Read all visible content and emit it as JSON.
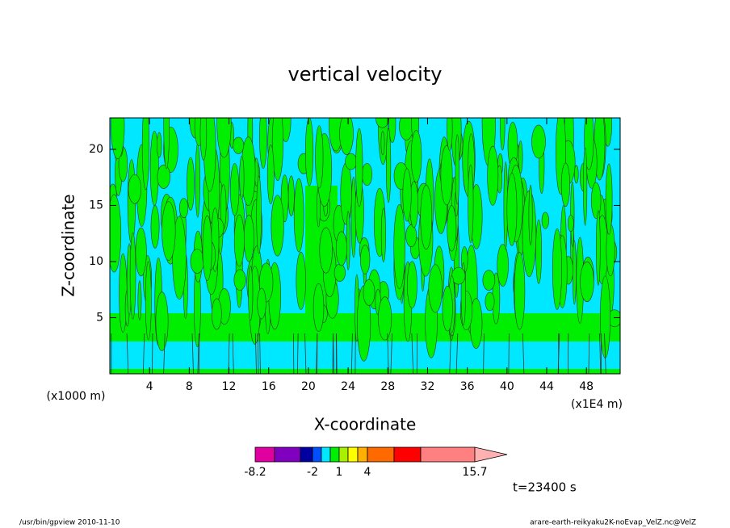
{
  "chart_data": {
    "type": "contour",
    "title": "vertical velocity",
    "x_label": "X-coordinate",
    "y_label": "Z-coordinate",
    "x_unit": "(x1000 m)",
    "x_scale_note": "(x1E4 m)",
    "xlim": [
      0,
      51.4
    ],
    "xticks": [
      4,
      8,
      12,
      16,
      20,
      24,
      28,
      32,
      36,
      40,
      44,
      48
    ],
    "ylim": [
      0,
      22.8
    ],
    "yticks": [
      5,
      10,
      15,
      20
    ],
    "field_colors": {
      "background": "#00e8ff",
      "positive": "#00ee00"
    },
    "colorbar": {
      "levels": [
        -8.2,
        null,
        null,
        -2,
        null,
        null,
        1,
        null,
        null,
        4,
        null,
        null,
        15.7
      ],
      "colors": [
        "#e000a0",
        "#8000c0",
        "#0000a0",
        "#0050ff",
        "#00e8ff",
        "#00ee00",
        "#a8f000",
        "#ffff00",
        "#ffb000",
        "#ff6a00",
        "#ff0000",
        "#ff8080",
        "#ffb0b0"
      ]
    },
    "time_label": "t=23400 s",
    "footer_left": "/usr/bin/gpview   2010-11-10",
    "footer_right": "arare-earth-reikyaku2K-noEvap_VelZ.nc@VelZ"
  }
}
